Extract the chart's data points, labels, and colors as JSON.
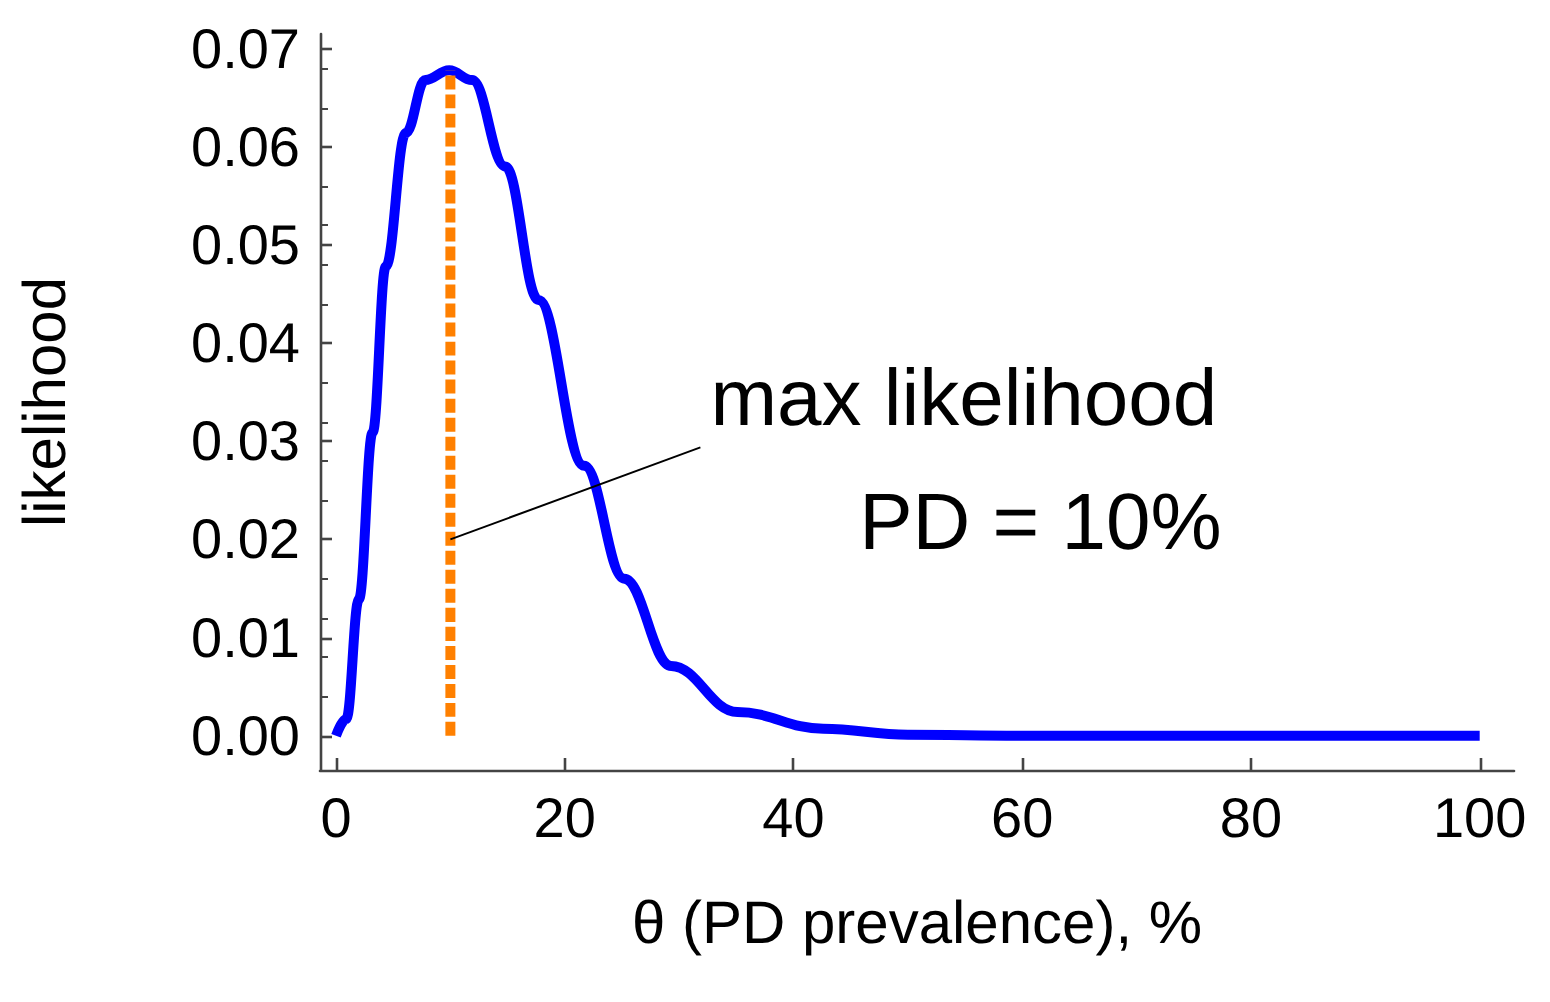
{
  "chart_data": {
    "type": "line",
    "xlabel": "θ (PD prevalence), %",
    "ylabel": "likelihood",
    "annotations": [
      {
        "text": "max likelihood",
        "x": 10,
        "y": 0.02
      },
      "PD = 10%"
    ],
    "xlim": [
      -1.4,
      103
    ],
    "ylim": [
      -0.0035,
      0.0715
    ],
    "xticks": [
      0,
      20,
      40,
      60,
      80,
      100
    ],
    "yticks": [
      {
        "value": 0,
        "label": "0.00"
      },
      {
        "value": 0.01,
        "label": "0.01"
      },
      {
        "value": 0.02,
        "label": "0.02"
      },
      {
        "value": 0.03,
        "label": "0.03"
      },
      {
        "value": 0.04,
        "label": "0.04"
      },
      {
        "value": 0.05,
        "label": "0.05"
      },
      {
        "value": 0.06,
        "label": "0.06"
      },
      {
        "value": 0.07,
        "label": "0.07"
      }
    ],
    "grid": false,
    "marker": "none",
    "series": [
      {
        "color": "#0000ff",
        "line_style": "solid",
        "x": [
          0,
          0.9,
          2,
          3.2,
          4.35,
          6.1,
          7.8,
          9.9,
          11.9,
          14.8,
          17.7,
          21.7,
          25.2,
          29.3,
          35.1,
          42.6,
          50,
          60,
          70,
          80,
          90,
          100
        ],
        "values": [
          0,
          0.0017,
          0.0139,
          0.0309,
          0.0478,
          0.0614,
          0.0668,
          0.0678,
          0.0668,
          0.058,
          0.0444,
          0.0275,
          0.016,
          0.0071,
          0.0024,
          0.0007,
          0.0001,
          0,
          0,
          0,
          0,
          0
        ]
      },
      {
        "color": "#ff8000",
        "line_style": "dashed",
        "x": [
          10,
          10
        ],
        "values": [
          0,
          0.0678
        ]
      }
    ]
  }
}
